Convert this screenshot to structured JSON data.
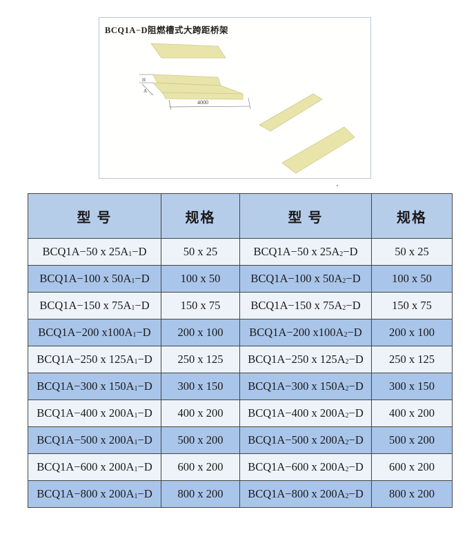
{
  "figure": {
    "title": "BCQ1A−D阻燃槽式大跨距桥架",
    "dimension_label": "4000",
    "dim_h": "H",
    "dim_a": "A",
    "tray_color": "#e8e3a8"
  },
  "table": {
    "headers": [
      "型 号",
      "规格",
      "型 号",
      "规格"
    ],
    "rows": [
      {
        "m1": {
          "pre": "BCQ1A−50 x 25A",
          "sub": "1",
          "suf": "−D"
        },
        "s1": "50 x 25",
        "m2": {
          "pre": "BCQ1A−50 x 25A",
          "sub": "2",
          "suf": "−D"
        },
        "s2": "50 x 25",
        "alt": false
      },
      {
        "m1": {
          "pre": "BCQ1A−100 x 50A",
          "sub": "1",
          "suf": "−D"
        },
        "s1": "100 x 50",
        "m2": {
          "pre": "BCQ1A−100 x 50A",
          "sub": "2",
          "suf": "−D"
        },
        "s2": "100 x 50",
        "alt": true
      },
      {
        "m1": {
          "pre": "BCQ1A−150 x 75A",
          "sub": "1",
          "suf": "−D"
        },
        "s1": "150 x 75",
        "m2": {
          "pre": "BCQ1A−150 x 75A",
          "sub": "2",
          "suf": "−D"
        },
        "s2": "150 x 75",
        "alt": false
      },
      {
        "m1": {
          "pre": "BCQ1A−200 x100A",
          "sub": "1",
          "suf": "−D"
        },
        "s1": "200 x 100",
        "m2": {
          "pre": "BCQ1A−200 x100A",
          "sub": "2",
          "suf": "−D"
        },
        "s2": "200 x 100",
        "alt": true
      },
      {
        "m1": {
          "pre": "BCQ1A−250 x 125A",
          "sub": "1",
          "suf": "−D"
        },
        "s1": "250 x 125",
        "m2": {
          "pre": "BCQ1A−250 x 125A",
          "sub": "2",
          "suf": "−D"
        },
        "s2": "250 x 125",
        "alt": false
      },
      {
        "m1": {
          "pre": "BCQ1A−300 x 150A",
          "sub": "1",
          "suf": "−D"
        },
        "s1": "300 x 150",
        "m2": {
          "pre": "BCQ1A−300 x 150A",
          "sub": "2",
          "suf": "−D"
        },
        "s2": "300 x 150",
        "alt": true
      },
      {
        "m1": {
          "pre": "BCQ1A−400 x 200A",
          "sub": "1",
          "suf": "−D"
        },
        "s1": "400 x 200",
        "m2": {
          "pre": "BCQ1A−400 x 200A",
          "sub": "2",
          "suf": "−D"
        },
        "s2": "400 x 200",
        "alt": false
      },
      {
        "m1": {
          "pre": "BCQ1A−500 x 200A",
          "sub": "1",
          "suf": "−D"
        },
        "s1": "500 x 200",
        "m2": {
          "pre": "BCQ1A−500 x 200A",
          "sub": "2",
          "suf": "−D"
        },
        "s2": "500 x 200",
        "alt": true
      },
      {
        "m1": {
          "pre": "BCQ1A−600 x 200A",
          "sub": "1",
          "suf": "−D"
        },
        "s1": "600 x 200",
        "m2": {
          "pre": "BCQ1A−600 x 200A",
          "sub": "2",
          "suf": "−D"
        },
        "s2": "600 x 200",
        "alt": false
      },
      {
        "m1": {
          "pre": "BCQ1A−800 x 200A",
          "sub": "1",
          "suf": "−D"
        },
        "s1": "800 x 200",
        "m2": {
          "pre": "BCQ1A−800 x 200A",
          "sub": "2",
          "suf": "−D"
        },
        "s2": "800 x 200",
        "alt": true
      }
    ]
  }
}
